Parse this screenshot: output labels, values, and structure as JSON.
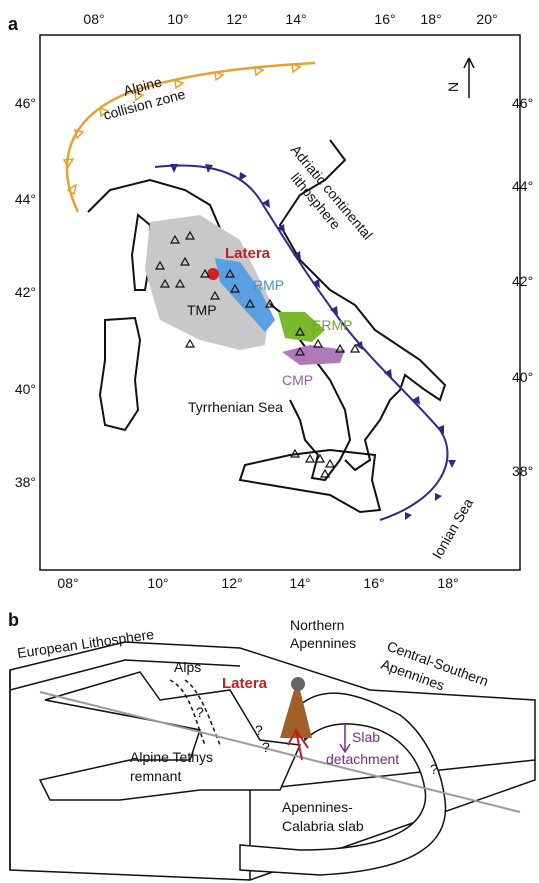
{
  "panel_a": {
    "label": "a",
    "lon_top": [
      "08°",
      "10°",
      "12°",
      "14°",
      "16°",
      "18°",
      "20°"
    ],
    "lon_bottom": [
      "08°",
      "10°",
      "12°",
      "14°",
      "16°",
      "18°"
    ],
    "lat_left": [
      "46°",
      "44°",
      "42°",
      "40°",
      "38°"
    ],
    "lat_right": [
      "46°",
      "44°",
      "42°",
      "40°",
      "38°"
    ],
    "north": "N",
    "collision_zone": [
      "Alpine",
      "collision zone"
    ],
    "adriatic": [
      "Adriatic continental",
      "lithosphere"
    ],
    "latera": "Latera",
    "rmp": "RMP",
    "tmp": "TMP",
    "ermp": "ERMP",
    "cmp": "CMP",
    "tyrrhenian": "Tyrrhenian Sea",
    "ionian": "Ionian Sea"
  },
  "panel_b": {
    "label": "b",
    "european": "European Lithosphere",
    "alps": "Alps",
    "northern_apennines": [
      "Northern",
      "Apennines"
    ],
    "central_southern": [
      "Central-Southern",
      "Apennines"
    ],
    "latera": "Latera",
    "slab_detachment": [
      "Slab",
      "detachment"
    ],
    "tethys": [
      "Alpine Tethys",
      "remnant"
    ],
    "calabria": [
      "Apennines-",
      "Calabria slab"
    ],
    "question_marks": [
      "?",
      "?",
      "?",
      "?"
    ]
  }
}
